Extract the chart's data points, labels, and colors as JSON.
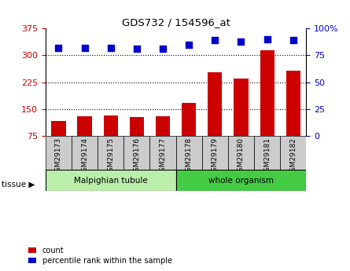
{
  "title": "GDS732 / 154596_at",
  "categories": [
    "GSM29173",
    "GSM29174",
    "GSM29175",
    "GSM29176",
    "GSM29177",
    "GSM29178",
    "GSM29179",
    "GSM29180",
    "GSM29181",
    "GSM29182"
  ],
  "bar_tops": [
    118,
    130,
    133,
    127,
    130,
    168,
    252,
    235,
    315,
    258
  ],
  "dot_values_pct": [
    82,
    82,
    82,
    81,
    81,
    85,
    89,
    88,
    90,
    89
  ],
  "bar_bottom": 75,
  "ylim_left": [
    75,
    375
  ],
  "ylim_right": [
    0,
    100
  ],
  "yticks_left": [
    75,
    150,
    225,
    300,
    375
  ],
  "yticks_right": [
    0,
    25,
    50,
    75,
    100
  ],
  "bar_color": "#cc0000",
  "dot_color": "#0000cc",
  "tissue_groups": [
    {
      "label": "Malpighian tubule",
      "indices": [
        0,
        1,
        2,
        3,
        4
      ],
      "color": "#bbeeaa"
    },
    {
      "label": "whole organism",
      "indices": [
        5,
        6,
        7,
        8,
        9
      ],
      "color": "#44cc44"
    }
  ],
  "legend_items": [
    {
      "label": "count",
      "color": "#cc0000"
    },
    {
      "label": "percentile rank within the sample",
      "color": "#0000cc"
    }
  ],
  "tick_label_color_left": "#cc0000",
  "tick_label_color_right": "#0000cc",
  "bar_width": 0.55,
  "box_bg_color": "#cccccc",
  "gridline_ticks": [
    150,
    225,
    300
  ]
}
